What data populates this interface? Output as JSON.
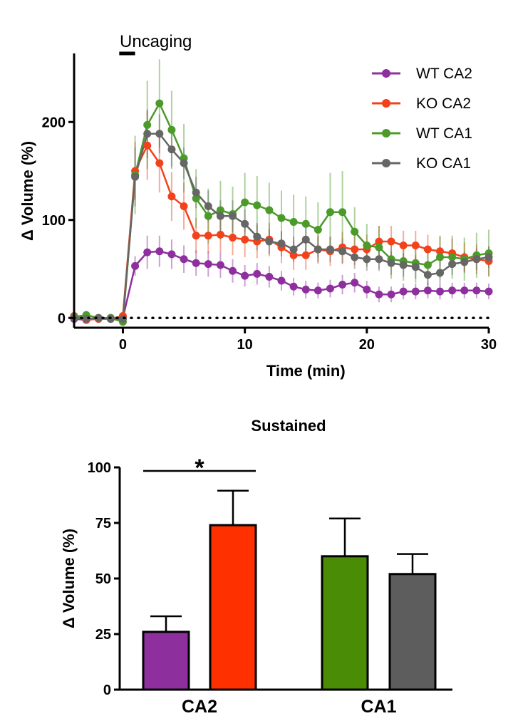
{
  "chart_data": [
    {
      "type": "line",
      "title": "",
      "annotation": "Uncaging",
      "xlabel": "Time (min)",
      "ylabel": "Δ Volume (%)",
      "xlim": [
        -4,
        30
      ],
      "ylim": [
        -10,
        270
      ],
      "x_ticks": [
        "0",
        "10",
        "20",
        "30"
      ],
      "x_tick_values": [
        0,
        10,
        20,
        30
      ],
      "y_ticks": [
        "0",
        "100",
        "200"
      ],
      "y_tick_values": [
        0,
        100,
        200
      ],
      "uncaging_window": [
        -0.3,
        1.0
      ],
      "baseline": 0,
      "x": [
        -4,
        -3,
        -2,
        -1,
        0,
        1,
        2,
        3,
        4,
        5,
        6,
        7,
        8,
        9,
        10,
        11,
        12,
        13,
        14,
        15,
        16,
        17,
        18,
        19,
        20,
        21,
        22,
        23,
        24,
        25,
        26,
        27,
        28,
        29,
        30
      ],
      "series": [
        {
          "name": "WT CA2",
          "color": "#8e2f9e",
          "values": [
            -1,
            -2,
            0,
            0,
            0,
            53,
            67,
            68,
            65,
            60,
            56,
            55,
            54,
            48,
            43,
            45,
            42,
            38,
            32,
            29,
            28,
            30,
            34,
            36,
            29,
            24,
            24,
            27,
            27,
            28,
            27,
            28,
            28,
            28,
            27
          ],
          "errors": [
            3,
            3,
            3,
            3,
            3,
            10,
            17,
            16,
            15,
            14,
            13,
            13,
            13,
            12,
            11,
            11,
            11,
            10,
            9,
            9,
            8,
            9,
            10,
            10,
            9,
            8,
            8,
            8,
            8,
            8,
            8,
            8,
            8,
            8,
            8
          ]
        },
        {
          "name": "KO CA2",
          "color": "#f2421b",
          "values": [
            2,
            -2,
            -1,
            -1,
            2,
            150,
            176,
            158,
            124,
            114,
            84,
            84,
            85,
            82,
            80,
            78,
            80,
            72,
            64,
            64,
            70,
            68,
            72,
            70,
            70,
            78,
            78,
            74,
            74,
            70,
            68,
            66,
            62,
            60,
            58
          ],
          "errors": [
            4,
            4,
            4,
            4,
            4,
            30,
            35,
            30,
            25,
            24,
            18,
            18,
            18,
            18,
            18,
            17,
            17,
            16,
            15,
            15,
            15,
            15,
            16,
            16,
            15,
            16,
            16,
            15,
            15,
            15,
            15,
            15,
            15,
            15,
            15
          ]
        },
        {
          "name": "WT CA1",
          "color": "#4b9a2a",
          "values": [
            1,
            3,
            0,
            0,
            -4,
            146,
            197,
            219,
            192,
            163,
            122,
            104,
            110,
            106,
            118,
            115,
            110,
            102,
            98,
            96,
            90,
            108,
            108,
            88,
            74,
            72,
            60,
            58,
            56,
            54,
            62,
            62,
            60,
            64,
            66
          ],
          "errors": [
            4,
            4,
            4,
            4,
            4,
            40,
            45,
            45,
            40,
            35,
            30,
            28,
            30,
            28,
            30,
            30,
            28,
            28,
            28,
            28,
            28,
            40,
            42,
            25,
            22,
            22,
            20,
            20,
            20,
            20,
            22,
            22,
            22,
            23,
            24
          ]
        },
        {
          "name": "KO CA1",
          "color": "#666666",
          "values": [
            0,
            -1,
            0,
            -1,
            -1,
            144,
            188,
            188,
            172,
            158,
            128,
            114,
            104,
            104,
            96,
            83,
            78,
            76,
            70,
            80,
            70,
            70,
            68,
            62,
            60,
            60,
            56,
            54,
            52,
            44,
            46,
            55,
            57,
            60,
            62
          ],
          "errors": [
            3,
            3,
            3,
            3,
            3,
            30,
            25,
            20,
            18,
            16,
            16,
            16,
            16,
            16,
            15,
            14,
            13,
            13,
            13,
            14,
            13,
            13,
            13,
            12,
            12,
            12,
            12,
            12,
            12,
            11,
            11,
            11,
            11,
            11,
            11
          ]
        }
      ]
    },
    {
      "type": "bar",
      "title": "Sustained",
      "xlabel": "",
      "ylabel": "Δ Volume (%)",
      "ylim": [
        0,
        100
      ],
      "y_ticks": [
        "0",
        "25",
        "50",
        "75",
        "100"
      ],
      "y_tick_values": [
        0,
        25,
        50,
        75,
        100
      ],
      "groups": [
        "CA2",
        "CA1"
      ],
      "bars": [
        {
          "name": "WT CA2",
          "group": "CA2",
          "value": 26,
          "error": 7,
          "color": "#8e2f9e"
        },
        {
          "name": "KO CA2",
          "group": "CA2",
          "value": 74,
          "error": 15.5,
          "color": "#ff3000"
        },
        {
          "name": "WT CA1",
          "group": "CA1",
          "value": 60,
          "error": 17,
          "color": "#4a8c06"
        },
        {
          "name": "KO CA1",
          "group": "CA1",
          "value": 52,
          "error": 9,
          "color": "#5d5d5d"
        }
      ],
      "significance": {
        "label": "*",
        "between": [
          "WT CA2",
          "KO CA2"
        ]
      }
    }
  ]
}
